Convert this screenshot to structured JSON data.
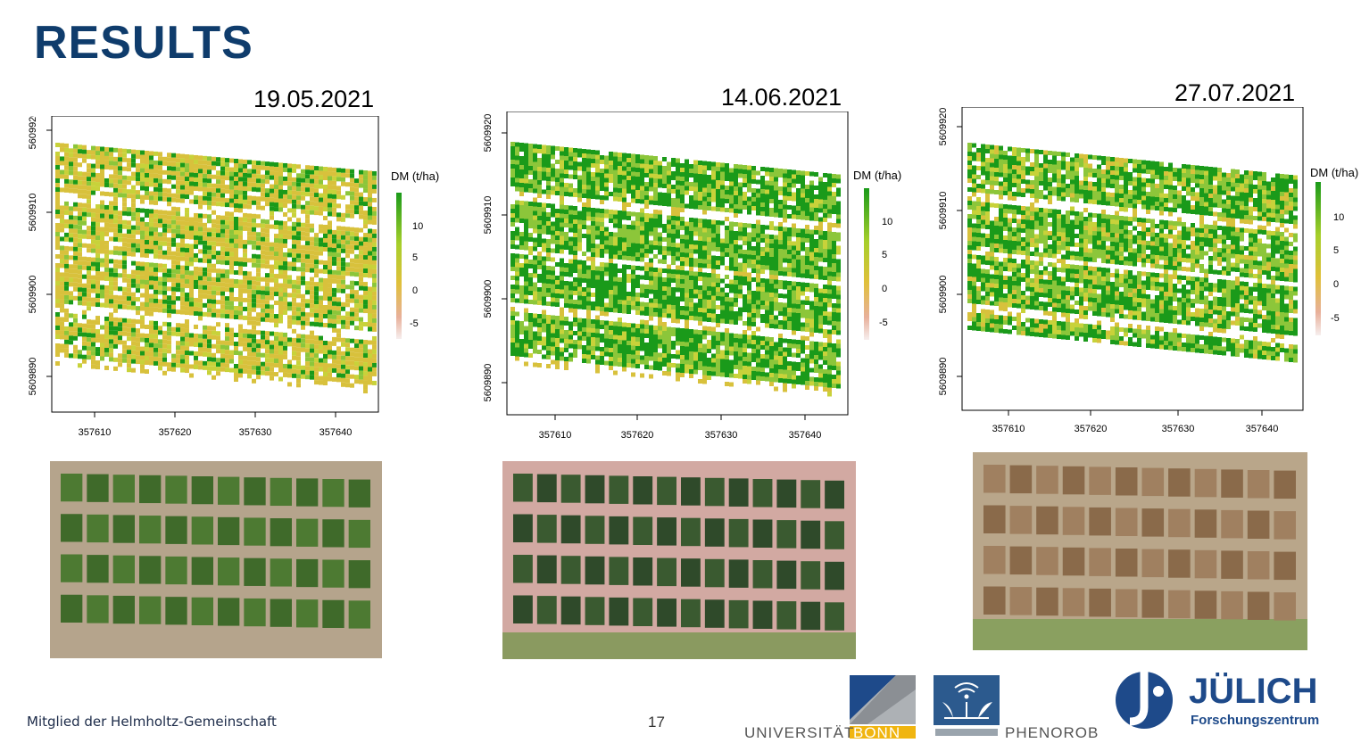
{
  "slide": {
    "title": "RESULTS",
    "footer": "Mitglied der Helmholtz-Gemeinschaft",
    "page_number": "17"
  },
  "colors": {
    "title": "#0f3c6c",
    "high": "#1a9a1a",
    "mid": "#d9c23c",
    "low": "#e8b6a6"
  },
  "maps": [
    {
      "date": "19.05.2021",
      "legend_title": "DM (t/ha)",
      "legend_ticks": [
        "10",
        "5",
        "0",
        "-5"
      ],
      "x_ticks": [
        "357610",
        "357620",
        "357630",
        "357640"
      ],
      "y_ticks": [
        "5609920",
        "5609910",
        "5609900",
        "5609890"
      ],
      "greenness": 0.3
    },
    {
      "date": "14.06.2021",
      "legend_title": "DM (t/ha)",
      "legend_ticks": [
        "10",
        "5",
        "0",
        "-5"
      ],
      "x_ticks": [
        "357610",
        "357620",
        "357630",
        "357640"
      ],
      "y_ticks": [
        "5609920",
        "5609910",
        "5609900",
        "5609890"
      ],
      "greenness": 0.85
    },
    {
      "date": "27.07.2021",
      "legend_title": "DM (t/ha)",
      "legend_ticks": [
        "10",
        "5",
        "0",
        "-5"
      ],
      "x_ticks": [
        "357610",
        "357620",
        "357630",
        "357640"
      ],
      "y_ticks": [
        "5609920",
        "5609910",
        "5609900",
        "5609890"
      ],
      "greenness": 0.75
    }
  ],
  "logos": {
    "bonn_left": "UNIVERSITÄT",
    "bonn_right": "BONN",
    "phenorob": "PHENOROB",
    "juelich": "JÜLICH",
    "juelich_sub": "Forschungszentrum"
  }
}
